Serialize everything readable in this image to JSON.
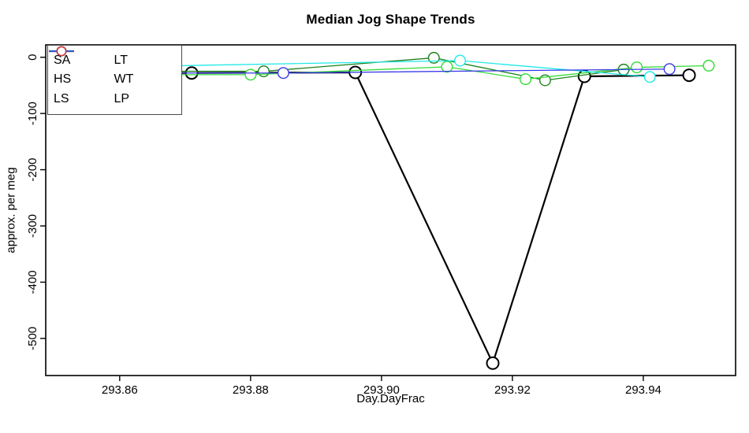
{
  "title": "Median Jog Shape Trends",
  "legend": {
    "items": [
      {
        "label": "SA",
        "color": "#000000",
        "has_line": true
      },
      {
        "label": "HS",
        "color": "#1E821E",
        "has_line": true
      },
      {
        "label": "LS",
        "color": "#35DC35",
        "has_line": true
      },
      {
        "label": "LT",
        "color": "#21E8E8",
        "has_line": true
      },
      {
        "label": "WT",
        "color": "#3A3AE8",
        "has_line": true
      },
      {
        "label": "LP",
        "color": "#E83A3A",
        "has_line": false
      }
    ]
  },
  "chart_data": {
    "type": "line",
    "title": "Median Jog Shape Trends",
    "xlabel": "Day.DayFrac",
    "ylabel": "approx. per meg",
    "xlim": [
      293.8487,
      293.9541
    ],
    "ylim": [
      -566,
      22
    ],
    "grid": false,
    "legend_position": "top-left",
    "marker": "open-circle",
    "x_ticks": {
      "values": [
        293.86,
        293.88,
        293.9,
        293.92,
        293.94
      ],
      "labels": [
        "293.86",
        "293.88",
        "293.90",
        "293.92",
        "293.94"
      ]
    },
    "y_ticks": {
      "values": [
        0,
        -100,
        -200,
        -300,
        -400,
        -500
      ],
      "labels": [
        "0",
        "-100",
        "-200",
        "-300",
        "-400",
        "-500"
      ]
    },
    "series": [
      {
        "name": "SA",
        "color": "#000000",
        "line_width": 2.2,
        "draw_line": true,
        "points": [
          [
            293.85,
            -28
          ],
          [
            293.871,
            -28
          ],
          [
            293.896,
            -27
          ],
          [
            293.917,
            -544
          ],
          [
            293.931,
            -34
          ],
          [
            293.947,
            -32
          ]
        ]
      },
      {
        "name": "HS",
        "color": "#1E821E",
        "line_width": 1.3,
        "draw_line": true,
        "points": [
          [
            293.85,
            -25
          ],
          [
            293.882,
            -25
          ],
          [
            293.908,
            -1
          ],
          [
            293.925,
            -41
          ],
          [
            293.937,
            -22
          ]
        ]
      },
      {
        "name": "LS",
        "color": "#35DC35",
        "line_width": 1.3,
        "draw_line": true,
        "points": [
          [
            293.85,
            -31
          ],
          [
            293.88,
            -31
          ],
          [
            293.91,
            -17
          ],
          [
            293.922,
            -39
          ],
          [
            293.939,
            -18
          ],
          [
            293.95,
            -15
          ]
        ]
      },
      {
        "name": "LT",
        "color": "#21E8E8",
        "line_width": 1.3,
        "draw_line": true,
        "points": [
          [
            293.85,
            -19
          ],
          [
            293.912,
            -6
          ],
          [
            293.941,
            -35
          ]
        ]
      },
      {
        "name": "WT",
        "color": "#3A3AE8",
        "line_width": 1.3,
        "draw_line": true,
        "points": [
          [
            293.85,
            -28
          ],
          [
            293.885,
            -28
          ],
          [
            293.944,
            -21
          ]
        ]
      },
      {
        "name": "LP",
        "color": "#E83A3A",
        "line_width": 1.3,
        "draw_line": false,
        "points": []
      }
    ]
  }
}
